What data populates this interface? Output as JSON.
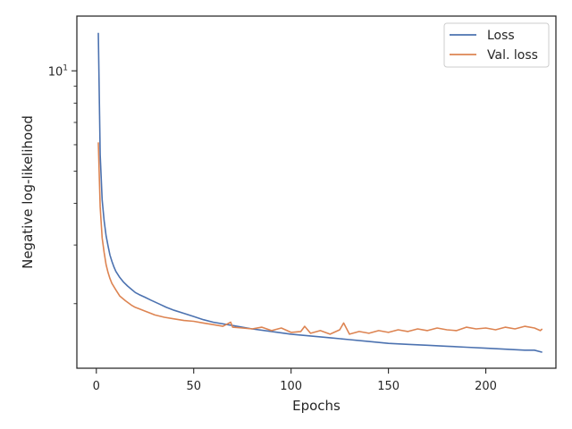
{
  "chart_data": {
    "type": "line",
    "xlabel": "Epochs",
    "ylabel": "Negative log-likelihood",
    "xlim": [
      -10,
      236
    ],
    "ylim": [
      1.28,
      14.6
    ],
    "yscale": "log",
    "xticks": [
      0,
      50,
      100,
      150,
      200
    ],
    "yticks": [
      {
        "value": 10,
        "base": "10",
        "exp": "1"
      }
    ],
    "grid": false,
    "legend_position": "top-right",
    "series": [
      {
        "name": "Loss",
        "color": "#4c72b0",
        "x": [
          1,
          2,
          3,
          4,
          5,
          6,
          7,
          8,
          9,
          10,
          12,
          14,
          16,
          18,
          20,
          22,
          25,
          28,
          32,
          36,
          40,
          45,
          50,
          55,
          60,
          70,
          80,
          90,
          100,
          110,
          120,
          130,
          140,
          150,
          160,
          170,
          180,
          190,
          200,
          210,
          220,
          225,
          229
        ],
        "y": [
          13.0,
          5.6,
          4.1,
          3.55,
          3.2,
          2.98,
          2.8,
          2.68,
          2.58,
          2.5,
          2.4,
          2.32,
          2.26,
          2.21,
          2.16,
          2.13,
          2.09,
          2.05,
          2.0,
          1.95,
          1.91,
          1.87,
          1.83,
          1.79,
          1.76,
          1.72,
          1.68,
          1.65,
          1.62,
          1.6,
          1.58,
          1.56,
          1.54,
          1.52,
          1.51,
          1.5,
          1.49,
          1.48,
          1.47,
          1.46,
          1.45,
          1.45,
          1.43
        ]
      },
      {
        "name": "Val. loss",
        "color": "#dd8452",
        "x": [
          1,
          2,
          3,
          4,
          5,
          6,
          7,
          8,
          10,
          12,
          15,
          18,
          20,
          22,
          25,
          28,
          30,
          35,
          40,
          45,
          50,
          55,
          60,
          65,
          69,
          70,
          75,
          80,
          85,
          90,
          95,
          100,
          105,
          107,
          110,
          115,
          120,
          125,
          127,
          130,
          135,
          140,
          145,
          150,
          155,
          160,
          165,
          170,
          175,
          180,
          185,
          190,
          195,
          200,
          205,
          210,
          215,
          220,
          225,
          228,
          229
        ],
        "y": [
          6.1,
          3.9,
          3.15,
          2.85,
          2.62,
          2.48,
          2.38,
          2.3,
          2.2,
          2.11,
          2.04,
          1.98,
          1.95,
          1.93,
          1.9,
          1.87,
          1.85,
          1.82,
          1.8,
          1.78,
          1.77,
          1.75,
          1.73,
          1.71,
          1.76,
          1.7,
          1.69,
          1.68,
          1.7,
          1.66,
          1.69,
          1.64,
          1.65,
          1.71,
          1.63,
          1.66,
          1.62,
          1.67,
          1.75,
          1.62,
          1.65,
          1.63,
          1.66,
          1.64,
          1.67,
          1.65,
          1.68,
          1.66,
          1.69,
          1.67,
          1.66,
          1.7,
          1.68,
          1.69,
          1.67,
          1.7,
          1.68,
          1.71,
          1.69,
          1.66,
          1.68
        ]
      }
    ]
  }
}
